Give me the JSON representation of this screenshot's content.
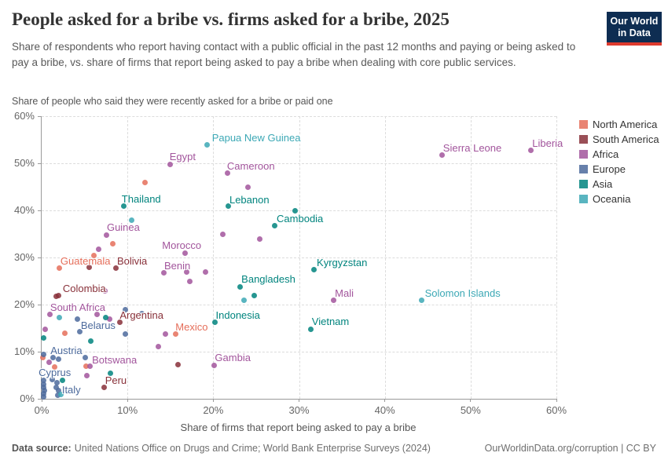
{
  "header": {
    "title": "People asked for a bribe vs. firms asked for a bribe, 2025",
    "subtitle": "Share of respondents who report having contact with a public official in the past 12 months and paying or being asked to pay a bribe, vs. share of firms that report being asked to pay a bribe when dealing with core public services.",
    "logo": {
      "line1": "Our World",
      "line2": "in Data",
      "bg": "#0e2d52",
      "stripe": "#de3a2e"
    }
  },
  "footer": {
    "label": "Data source:",
    "source": "United Nations Office on Drugs and Crime; World Bank Enterprise Surveys (2024)",
    "link": "OurWorldinData.org/corruption | CC BY"
  },
  "chart_data": {
    "type": "scatter",
    "title": "People asked for a bribe vs. firms asked for a bribe, 2025",
    "xlabel": "Share of firms that report being asked to pay a bribe",
    "ylabel": "Share of people who said they were recently asked for a bribe or paid one",
    "xlim": [
      0,
      60
    ],
    "ylim": [
      0,
      60
    ],
    "grid": "dashed",
    "legend_position": "right",
    "tick_suffix": "%",
    "ticks": {
      "x": [
        0,
        10,
        20,
        30,
        40,
        50,
        60
      ],
      "y": [
        0,
        10,
        20,
        30,
        40,
        50,
        60
      ]
    },
    "series": [
      {
        "name": "North America",
        "color": "#E56E5A",
        "points": [
          {
            "x": 2.1,
            "y": 27.7,
            "label": "Guatemala",
            "dx": 1,
            "dy": -9
          },
          {
            "x": 15.6,
            "y": 13.7,
            "label": "Mexico",
            "dx": 0,
            "dy": -9
          },
          {
            "x": 12.0,
            "y": 45.9
          },
          {
            "x": 8.3,
            "y": 32.9
          },
          {
            "x": 6.1,
            "y": 30.5
          },
          {
            "x": 2.7,
            "y": 13.9
          },
          {
            "x": 0.1,
            "y": 8.8
          },
          {
            "x": 1.5,
            "y": 6.7
          },
          {
            "x": 5.2,
            "y": 7.0
          }
        ]
      },
      {
        "name": "South America",
        "color": "#883039",
        "points": [
          {
            "x": 8.7,
            "y": 27.7,
            "label": "Bolivia",
            "dx": 1,
            "dy": -9
          },
          {
            "x": 2.0,
            "y": 22.0,
            "label": "Colombia",
            "dx": 5,
            "dy": -8
          },
          {
            "x": 9.1,
            "y": 16.2,
            "label": "Argentina",
            "dx": 0,
            "dy": -9
          },
          {
            "x": 7.3,
            "y": 2.5,
            "label": "Peru",
            "dx": 1,
            "dy": -8
          },
          {
            "x": 5.5,
            "y": 27.9
          },
          {
            "x": 1.7,
            "y": 21.8
          },
          {
            "x": 15.9,
            "y": 7.3
          }
        ]
      },
      {
        "name": "Africa",
        "color": "#A2559C",
        "points": [
          {
            "x": 46.7,
            "y": 51.7,
            "label": "Sierra Leone",
            "dx": 1,
            "dy": -9
          },
          {
            "x": 57.0,
            "y": 52.7,
            "label": "Liberia",
            "dx": 2,
            "dy": -9
          },
          {
            "x": 15.0,
            "y": 49.8,
            "label": "Egypt",
            "dx": -1,
            "dy": -9
          },
          {
            "x": 21.7,
            "y": 47.9,
            "label": "Cameroon",
            "dx": -1,
            "dy": -9
          },
          {
            "x": 7.6,
            "y": 34.8,
            "label": "Guinea",
            "dx": 0,
            "dy": -9
          },
          {
            "x": 16.7,
            "y": 30.9,
            "label": "Morocco",
            "dx": -29,
            "dy": -10
          },
          {
            "x": 14.2,
            "y": 26.8,
            "label": "Benin",
            "dx": 1,
            "dy": -8
          },
          {
            "x": 34.0,
            "y": 21.0,
            "label": "Mali",
            "dx": 2,
            "dy": -8
          },
          {
            "x": 1.0,
            "y": 17.9,
            "label": "South Africa",
            "dx": 0,
            "dy": -9
          },
          {
            "x": 5.6,
            "y": 6.9,
            "label": "Botswana",
            "dx": 3,
            "dy": -8
          },
          {
            "x": 20.1,
            "y": 7.1,
            "label": "Gambia",
            "dx": 1,
            "dy": -9
          },
          {
            "x": 24.0,
            "y": 44.9
          },
          {
            "x": 6.6,
            "y": 31.8
          },
          {
            "x": 21.1,
            "y": 35.0
          },
          {
            "x": 25.4,
            "y": 34.0
          },
          {
            "x": 16.9,
            "y": 26.9
          },
          {
            "x": 19.1,
            "y": 27.0
          },
          {
            "x": 17.3,
            "y": 24.9
          },
          {
            "x": 7.4,
            "y": 23.0
          },
          {
            "x": 6.5,
            "y": 17.9
          },
          {
            "x": 7.9,
            "y": 17.0
          },
          {
            "x": 0.4,
            "y": 14.8
          },
          {
            "x": 14.4,
            "y": 13.7
          },
          {
            "x": 13.6,
            "y": 11.1
          },
          {
            "x": 0.9,
            "y": 7.7
          },
          {
            "x": 5.3,
            "y": 4.9
          }
        ]
      },
      {
        "name": "Europe",
        "color": "#4C6A9C",
        "points": [
          {
            "x": 4.2,
            "y": 17.0,
            "label": "Belarus",
            "dx": 4,
            "dy": 9
          },
          {
            "x": 1.3,
            "y": 8.7,
            "label": "Austria",
            "dx": -3,
            "dy": -9
          },
          {
            "x": 1.2,
            "y": 4.1,
            "label": "Cyprus",
            "dx": -17,
            "dy": -8
          },
          {
            "x": 2.0,
            "y": 1.8,
            "label": "Italy",
            "dx": 4,
            "dy": 0
          },
          {
            "x": 9.8,
            "y": 19.0
          },
          {
            "x": 11.7,
            "y": 18.1
          },
          {
            "x": 4.4,
            "y": 14.2
          },
          {
            "x": 9.8,
            "y": 13.8
          },
          {
            "x": 5.1,
            "y": 8.8
          },
          {
            "x": 0.2,
            "y": 9.4
          },
          {
            "x": 2.0,
            "y": 8.4
          },
          {
            "x": 0.2,
            "y": 4.0
          },
          {
            "x": 0.2,
            "y": 3.1
          },
          {
            "x": 0.2,
            "y": 2.5
          },
          {
            "x": 0.3,
            "y": 1.8
          },
          {
            "x": 0.2,
            "y": 1.1
          },
          {
            "x": 0.2,
            "y": 0.5
          },
          {
            "x": 1.8,
            "y": 3.4
          },
          {
            "x": 1.7,
            "y": 2.5
          },
          {
            "x": 1.9,
            "y": 0.8
          }
        ]
      },
      {
        "name": "Asia",
        "color": "#00847E",
        "points": [
          {
            "x": 9.6,
            "y": 41.0,
            "label": "Thailand",
            "dx": -3,
            "dy": -8
          },
          {
            "x": 21.8,
            "y": 40.9,
            "label": "Lebanon",
            "dx": 1,
            "dy": -8
          },
          {
            "x": 29.5,
            "y": 40.0,
            "label": "Cambodia",
            "dx": -23,
            "dy": 11
          },
          {
            "x": 31.7,
            "y": 27.5,
            "label": "Kyrgyzstan",
            "dx": 4,
            "dy": -8
          },
          {
            "x": 23.1,
            "y": 23.8,
            "label": "Bangladesh",
            "dx": 2,
            "dy": -9
          },
          {
            "x": 20.2,
            "y": 16.2,
            "label": "Indonesia",
            "dx": 1,
            "dy": -9
          },
          {
            "x": 31.4,
            "y": 14.8,
            "label": "Vietnam",
            "dx": 1,
            "dy": -9
          },
          {
            "x": 27.2,
            "y": 36.8
          },
          {
            "x": 24.8,
            "y": 21.9
          },
          {
            "x": 7.5,
            "y": 17.2
          },
          {
            "x": 0.2,
            "y": 12.9
          },
          {
            "x": 5.7,
            "y": 12.3
          },
          {
            "x": 8.0,
            "y": 5.5
          },
          {
            "x": 2.4,
            "y": 4.0
          }
        ]
      },
      {
        "name": "Oceania",
        "color": "#3CA8B5",
        "points": [
          {
            "x": 19.3,
            "y": 54.0,
            "label": "Papua New Guinea",
            "dx": 6,
            "dy": -8
          },
          {
            "x": 44.3,
            "y": 21.0,
            "label": "Solomon Islands",
            "dx": 4,
            "dy": -8
          },
          {
            "x": 10.5,
            "y": 38.0
          },
          {
            "x": 23.6,
            "y": 21.0
          },
          {
            "x": 2.1,
            "y": 17.2
          },
          {
            "x": 2.2,
            "y": 1.0
          }
        ]
      }
    ]
  }
}
